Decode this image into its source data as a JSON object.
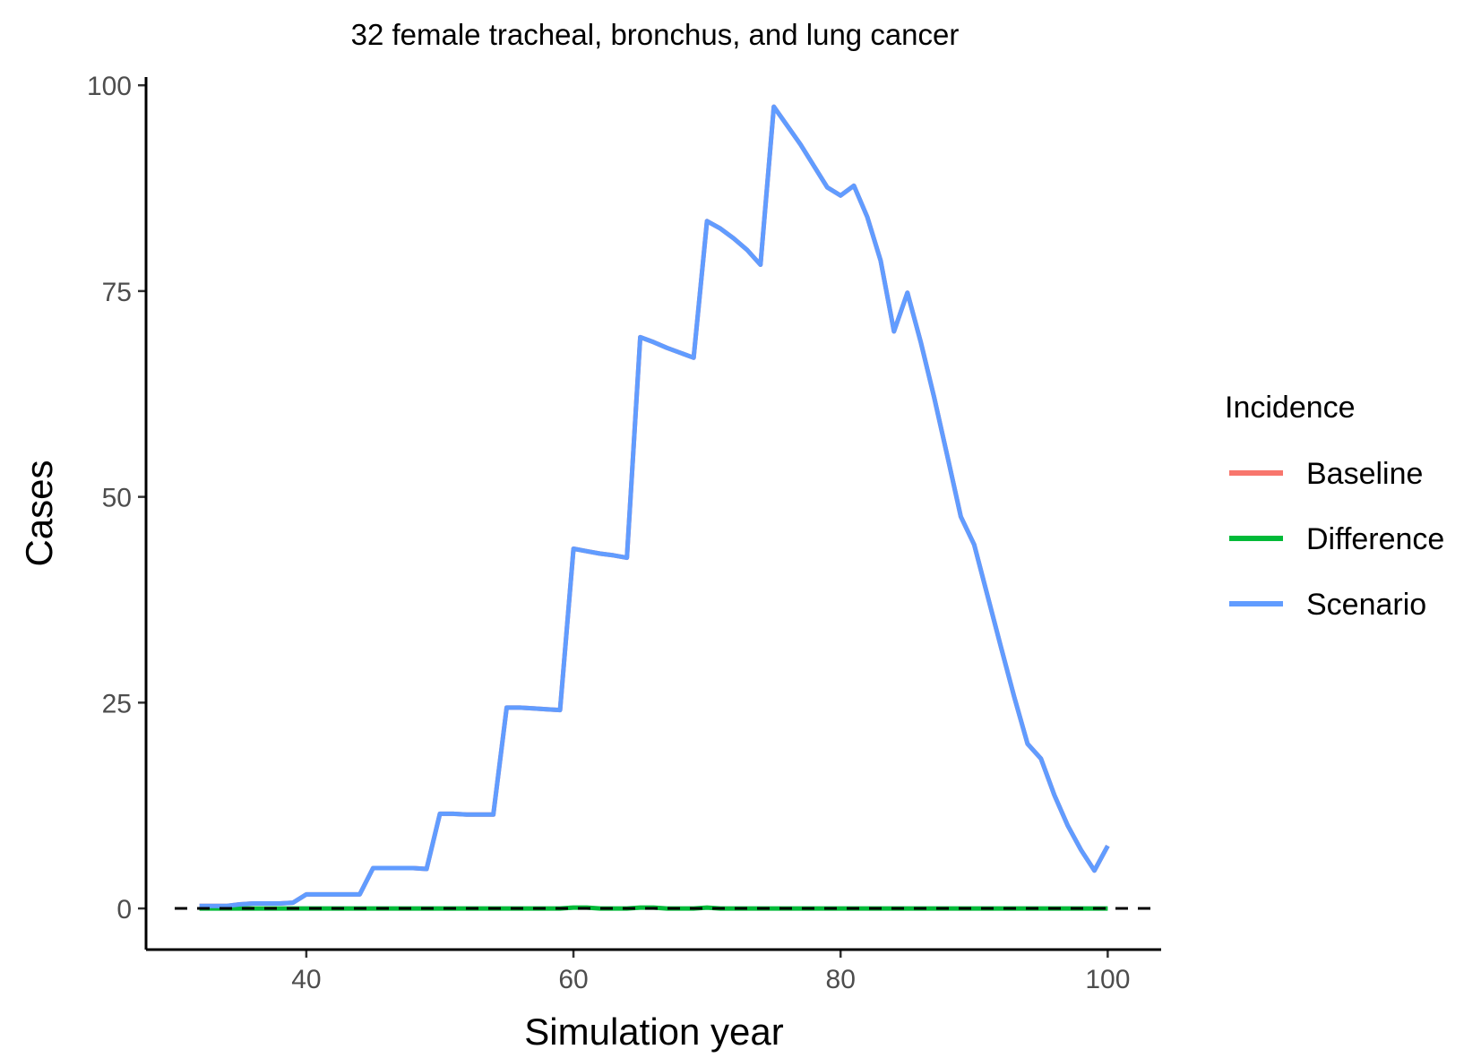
{
  "chart_data": {
    "type": "line",
    "title": "32 female tracheal, bronchus, and lung cancer",
    "xlabel": "Simulation year",
    "ylabel": "Cases",
    "xlim": [
      28,
      104
    ],
    "ylim": [
      -5,
      101
    ],
    "xticks": [
      40,
      60,
      80,
      100
    ],
    "yticks": [
      0,
      25,
      50,
      75,
      100
    ],
    "grid": false,
    "reference_line": {
      "y": 0,
      "style": "dashed",
      "color": "#000000"
    },
    "legend": {
      "title": "Incidence",
      "position": "right",
      "entries": [
        {
          "label": "Baseline",
          "color": "#F8766D"
        },
        {
          "label": "Difference",
          "color": "#00BA38"
        },
        {
          "label": "Scenario",
          "color": "#619CFF"
        }
      ]
    },
    "x": [
      32,
      33,
      34,
      35,
      36,
      37,
      38,
      39,
      40,
      41,
      42,
      43,
      44,
      45,
      46,
      47,
      48,
      49,
      50,
      51,
      52,
      53,
      54,
      55,
      56,
      57,
      58,
      59,
      60,
      61,
      62,
      63,
      64,
      65,
      66,
      67,
      68,
      69,
      70,
      71,
      72,
      73,
      74,
      75,
      76,
      77,
      78,
      79,
      80,
      81,
      82,
      83,
      84,
      85,
      86,
      87,
      88,
      89,
      90,
      91,
      92,
      93,
      94,
      95,
      96,
      97,
      98,
      99,
      100
    ],
    "series": [
      {
        "name": "Baseline",
        "color": "#F8766D",
        "values": [
          0.3,
          0.3,
          0.3,
          0.5,
          0.6,
          0.6,
          0.6,
          0.7,
          1.7,
          1.7,
          1.7,
          1.7,
          1.7,
          4.9,
          4.9,
          4.9,
          4.9,
          4.8,
          11.5,
          11.5,
          11.4,
          11.4,
          11.4,
          24.4,
          24.4,
          24.3,
          24.2,
          24.1,
          43.7,
          43.4,
          43.1,
          42.9,
          42.6,
          69.4,
          68.8,
          68.1,
          67.5,
          66.9,
          83.5,
          82.6,
          81.4,
          80.0,
          78.2,
          97.4,
          95.1,
          92.8,
          90.2,
          87.6,
          86.6,
          87.8,
          84.0,
          78.7,
          70.1,
          74.8,
          68.8,
          62.1,
          54.9,
          47.6,
          44.2,
          38.0,
          31.8,
          25.7,
          20.0,
          18.2,
          13.8,
          10.1,
          7.1,
          4.6,
          7.6
        ]
      },
      {
        "name": "Difference",
        "color": "#00BA38",
        "values": [
          0,
          0,
          0,
          0,
          0,
          0,
          0,
          0,
          0,
          0,
          0,
          0,
          0,
          0,
          0,
          0,
          0,
          0,
          0,
          0,
          0,
          0,
          0,
          0,
          0,
          0,
          0,
          0,
          0.1,
          0.1,
          0,
          0,
          0,
          0.1,
          0.1,
          0,
          0,
          0,
          0.1,
          0,
          0,
          0,
          0,
          0,
          0,
          0,
          0,
          0,
          0,
          0,
          0,
          0,
          0,
          0,
          0,
          0,
          0,
          0,
          0,
          0,
          0,
          0,
          0,
          0,
          0,
          0,
          0,
          0,
          0
        ]
      },
      {
        "name": "Scenario",
        "color": "#619CFF",
        "values": [
          0.3,
          0.3,
          0.3,
          0.5,
          0.6,
          0.6,
          0.6,
          0.7,
          1.7,
          1.7,
          1.7,
          1.7,
          1.7,
          4.9,
          4.9,
          4.9,
          4.9,
          4.8,
          11.5,
          11.5,
          11.4,
          11.4,
          11.4,
          24.4,
          24.4,
          24.3,
          24.2,
          24.1,
          43.7,
          43.4,
          43.1,
          42.9,
          42.6,
          69.4,
          68.8,
          68.1,
          67.5,
          66.9,
          83.5,
          82.6,
          81.4,
          80.0,
          78.2,
          97.4,
          95.1,
          92.8,
          90.2,
          87.6,
          86.6,
          87.8,
          84.0,
          78.7,
          70.1,
          74.8,
          68.8,
          62.1,
          54.9,
          47.6,
          44.2,
          38.0,
          31.8,
          25.7,
          20.0,
          18.2,
          13.8,
          10.1,
          7.1,
          4.6,
          7.6
        ]
      }
    ]
  }
}
